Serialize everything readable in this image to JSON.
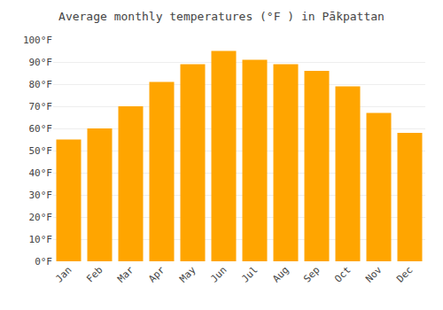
{
  "chart_data": {
    "type": "bar",
    "title": "Average monthly temperatures (°F ) in Pā̇kpattan",
    "categories": [
      "Jan",
      "Feb",
      "Mar",
      "Apr",
      "May",
      "Jun",
      "Jul",
      "Aug",
      "Sep",
      "Oct",
      "Nov",
      "Dec"
    ],
    "values": [
      55,
      60,
      70,
      81,
      89,
      95,
      91,
      89,
      86,
      79,
      67,
      58
    ],
    "color": "#FFA500",
    "ylim": [
      0,
      100
    ],
    "yticks": [
      {
        "value": 0,
        "label": "0°F"
      },
      {
        "value": 10,
        "label": "10°F"
      },
      {
        "value": 20,
        "label": "20°F"
      },
      {
        "value": 30,
        "label": "30°F"
      },
      {
        "value": 40,
        "label": "40°F"
      },
      {
        "value": 50,
        "label": "50°F"
      },
      {
        "value": 60,
        "label": "60°F"
      },
      {
        "value": 70,
        "label": "70°F"
      },
      {
        "value": 80,
        "label": "80°F"
      },
      {
        "value": 90,
        "label": "90°F"
      },
      {
        "value": 100,
        "label": "100°F"
      }
    ],
    "grid": true
  }
}
